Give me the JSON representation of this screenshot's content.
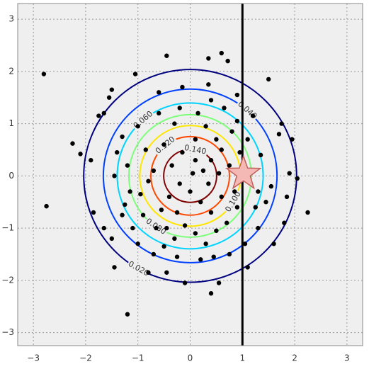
{
  "chart_data": {
    "type": "scatter",
    "x": [
      -2.8,
      -2.75,
      -2.25,
      -2.1,
      -1.2,
      -0.45,
      0.35,
      0.6,
      0.72,
      1.5,
      2.25,
      1.1,
      0.4,
      -0.1,
      0.55,
      2.05,
      1.95,
      1.75,
      -1.05,
      -1.5,
      -1.55,
      -1.65,
      -1.75,
      -1.9,
      -1.65,
      -1.5,
      -1.45,
      -1.0,
      -0.45,
      -0.8,
      1.25,
      1.55,
      1.9,
      1.85,
      1.7,
      -1.3,
      -1.2,
      -1.15,
      -1.25,
      -1.3,
      -1.0,
      -0.85,
      -0.7,
      -0.95,
      -0.9,
      -0.65,
      -0.5,
      -0.3,
      -0.1,
      0.1,
      0.3,
      0.5,
      0.7,
      0.9,
      0.85,
      0.6,
      0.4,
      0.2,
      0.0,
      -0.2,
      -0.4,
      -0.55,
      -0.25,
      0.05,
      0.25,
      0.4,
      0.55,
      0.75,
      0.95,
      1.1,
      0.8,
      0.5,
      0.3,
      0.1,
      -0.15,
      -0.35,
      -0.5,
      -0.3,
      -0.6,
      -0.2,
      0.15,
      0.4,
      0.65,
      0.9,
      1.2,
      1.35,
      1.45,
      1.3,
      1.05,
      0.75,
      0.2,
      -0.25,
      -0.7,
      -1.1,
      -1.45,
      -1.4,
      -0.15,
      -0.6,
      0.35,
      0.9,
      1.3,
      0.35,
      -0.8,
      0.6,
      -0.45,
      0.45,
      1.8,
      1.6,
      -1.85,
      0.1
    ],
    "y": [
      1.95,
      -0.58,
      0.62,
      0.42,
      -2.65,
      2.3,
      2.25,
      2.35,
      2.2,
      1.85,
      -0.7,
      -1.75,
      -2.25,
      -2.05,
      -2.05,
      -0.05,
      0.7,
      1.0,
      1.95,
      1.65,
      1.5,
      1.2,
      1.15,
      0.3,
      -1.0,
      -1.2,
      -1.75,
      -1.3,
      -1.85,
      -1.85,
      -0.6,
      -0.2,
      0.05,
      -0.4,
      0.8,
      0.75,
      0.2,
      -0.3,
      -0.55,
      -0.75,
      0.95,
      0.5,
      0.1,
      -0.35,
      -0.75,
      -1.0,
      -1.35,
      -1.2,
      -0.95,
      -1.1,
      -1.3,
      -1.05,
      -0.9,
      -0.6,
      -0.3,
      -0.4,
      -0.7,
      -0.5,
      -0.3,
      -0.15,
      -0.4,
      -0.65,
      -0.7,
      0.05,
      0.1,
      0.3,
      0.05,
      0.2,
      0.45,
      0.7,
      0.85,
      0.7,
      0.95,
      0.7,
      0.45,
      0.2,
      0.6,
      1.0,
      1.2,
      1.3,
      1.2,
      1.45,
      1.3,
      1.05,
      1.15,
      0.4,
      -0.5,
      -1.0,
      -1.3,
      -1.5,
      -1.6,
      -1.55,
      -1.5,
      -1.0,
      0.0,
      0.45,
      1.7,
      1.6,
      1.75,
      1.55,
      -0.3,
      -0.15,
      -0.1,
      0.5,
      -1.0,
      -1.55,
      -0.9,
      -1.3,
      -0.7,
      0.3
    ],
    "point_color": "#000000",
    "contours": [
      {
        "value": 0.02,
        "label": "0.020",
        "color": "#00007f"
      },
      {
        "value": 0.04,
        "label": "0.040",
        "color": "#0040ff"
      },
      {
        "value": 0.06,
        "label": "0.060",
        "color": "#00d4ff"
      },
      {
        "value": 0.08,
        "label": "0.080",
        "color": "#7dff7a"
      },
      {
        "value": 0.1,
        "label": "0.100",
        "color": "#ffe600"
      },
      {
        "value": 0.12,
        "label": "0.120",
        "color": "#ff4800"
      },
      {
        "value": 0.14,
        "label": "0.140",
        "color": "#7f0000"
      }
    ],
    "vline": 1,
    "star": {
      "x": 1.02,
      "y": 0.04
    },
    "xlim": [
      -3.3,
      3.3
    ],
    "ylim": [
      -3.25,
      3.3
    ],
    "xticks": [
      {
        "value": -3,
        "label": "−3"
      },
      {
        "value": -2,
        "label": "−2"
      },
      {
        "value": -1,
        "label": "−1"
      },
      0,
      1,
      2,
      3
    ],
    "yticks": [
      {
        "value": -3,
        "label": "−3"
      },
      {
        "value": -2,
        "label": "−2"
      },
      {
        "value": -1,
        "label": "−1"
      },
      0,
      1,
      2,
      3
    ],
    "grid": true
  }
}
